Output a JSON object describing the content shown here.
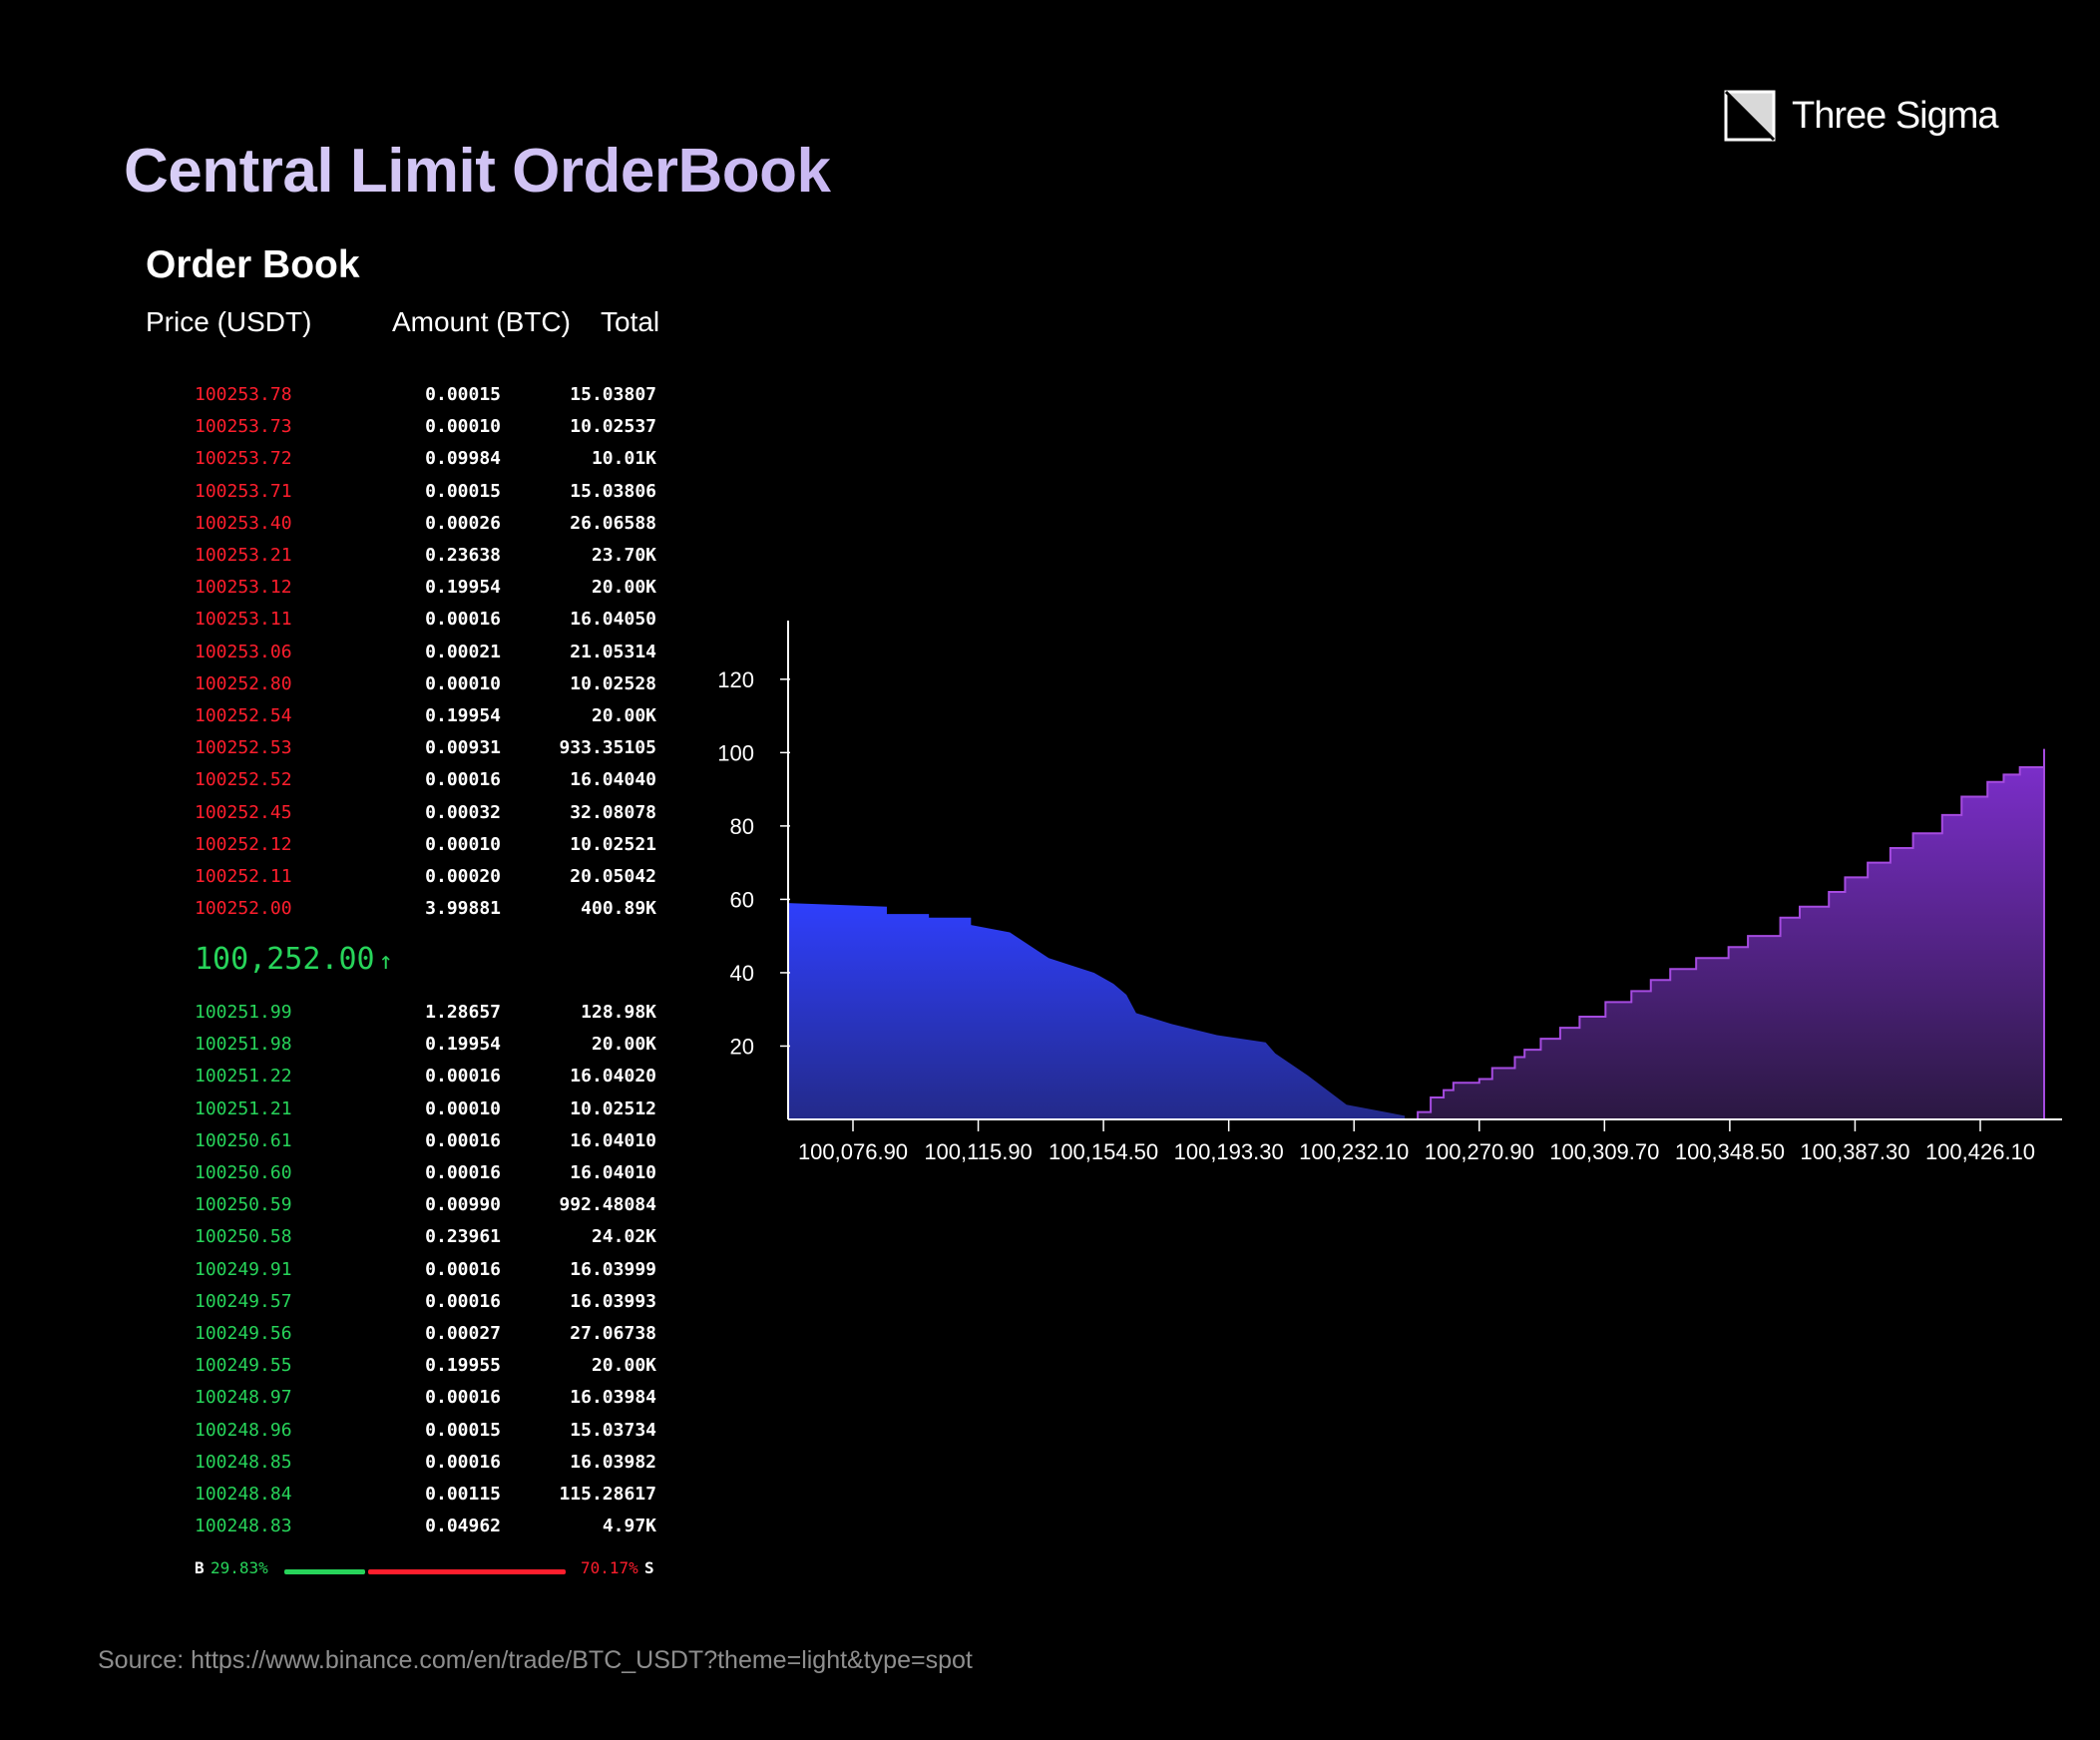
{
  "title": "Central Limit OrderBook",
  "brand": "Three Sigma",
  "order_book": {
    "heading": "Order Book",
    "columns": {
      "price": "Price (USDT)",
      "amount": "Amount (BTC)",
      "total": "Total"
    },
    "asks": [
      {
        "price": "100253.78",
        "amount": "0.00015",
        "total": "15.03807"
      },
      {
        "price": "100253.73",
        "amount": "0.00010",
        "total": "10.02537"
      },
      {
        "price": "100253.72",
        "amount": "0.09984",
        "total": "10.01K"
      },
      {
        "price": "100253.71",
        "amount": "0.00015",
        "total": "15.03806"
      },
      {
        "price": "100253.40",
        "amount": "0.00026",
        "total": "26.06588"
      },
      {
        "price": "100253.21",
        "amount": "0.23638",
        "total": "23.70K"
      },
      {
        "price": "100253.12",
        "amount": "0.19954",
        "total": "20.00K"
      },
      {
        "price": "100253.11",
        "amount": "0.00016",
        "total": "16.04050"
      },
      {
        "price": "100253.06",
        "amount": "0.00021",
        "total": "21.05314"
      },
      {
        "price": "100252.80",
        "amount": "0.00010",
        "total": "10.02528"
      },
      {
        "price": "100252.54",
        "amount": "0.19954",
        "total": "20.00K"
      },
      {
        "price": "100252.53",
        "amount": "0.00931",
        "total": "933.35105"
      },
      {
        "price": "100252.52",
        "amount": "0.00016",
        "total": "16.04040"
      },
      {
        "price": "100252.45",
        "amount": "0.00032",
        "total": "32.08078"
      },
      {
        "price": "100252.12",
        "amount": "0.00010",
        "total": "10.02521"
      },
      {
        "price": "100252.11",
        "amount": "0.00020",
        "total": "20.05042"
      },
      {
        "price": "100252.00",
        "amount": "3.99881",
        "total": "400.89K"
      }
    ],
    "last_price": "100,252.00",
    "last_price_arrow": "↑",
    "bids": [
      {
        "price": "100251.99",
        "amount": "1.28657",
        "total": "128.98K"
      },
      {
        "price": "100251.98",
        "amount": "0.19954",
        "total": "20.00K"
      },
      {
        "price": "100251.22",
        "amount": "0.00016",
        "total": "16.04020"
      },
      {
        "price": "100251.21",
        "amount": "0.00010",
        "total": "10.02512"
      },
      {
        "price": "100250.61",
        "amount": "0.00016",
        "total": "16.04010"
      },
      {
        "price": "100250.60",
        "amount": "0.00016",
        "total": "16.04010"
      },
      {
        "price": "100250.59",
        "amount": "0.00990",
        "total": "992.48084"
      },
      {
        "price": "100250.58",
        "amount": "0.23961",
        "total": "24.02K"
      },
      {
        "price": "100249.91",
        "amount": "0.00016",
        "total": "16.03999"
      },
      {
        "price": "100249.57",
        "amount": "0.00016",
        "total": "16.03993"
      },
      {
        "price": "100249.56",
        "amount": "0.00027",
        "total": "27.06738"
      },
      {
        "price": "100249.55",
        "amount": "0.19955",
        "total": "20.00K"
      },
      {
        "price": "100248.97",
        "amount": "0.00016",
        "total": "16.03984"
      },
      {
        "price": "100248.96",
        "amount": "0.00015",
        "total": "15.03734"
      },
      {
        "price": "100248.85",
        "amount": "0.00016",
        "total": "16.03982"
      },
      {
        "price": "100248.84",
        "amount": "0.00115",
        "total": "115.28617"
      },
      {
        "price": "100248.83",
        "amount": "0.04962",
        "total": "4.97K"
      }
    ],
    "buy_label": "B",
    "buy_pct": "29.83%",
    "sell_pct": "70.17%",
    "sell_label": "S",
    "buy_fraction": 0.2983
  },
  "source": "Source:  https://www.binance.com/en/trade/BTC_USDT?theme=light&type=spot",
  "colors": {
    "ask": "#ff1e2d",
    "bid": "#27d45a",
    "bid_depth": "#2d3cf7",
    "ask_depth": "#7a2bc4"
  },
  "chart_data": {
    "type": "area",
    "title": "",
    "xlabel": "",
    "ylabel": "",
    "x_ticks": [
      "100,076.90",
      "100,115.90",
      "100,154.50",
      "100,193.30",
      "100,232.10",
      "100,270.90",
      "100,309.70",
      "100,348.50",
      "100,387.30",
      "100,426.10"
    ],
    "y_ticks": [
      20,
      40,
      60,
      80,
      100,
      120
    ],
    "xlim": [
      100057.5,
      100445.5
    ],
    "ylim": [
      0,
      136
    ],
    "grid": false,
    "series": [
      {
        "side": "bid",
        "x": [
          100057.5,
          100088,
          100088,
          100101,
          100101,
          100114,
          100114,
          100126,
          100138,
          100145,
          100152,
          100158,
          100162,
          100165,
          100176,
          100190,
          100205,
          100208,
          100218,
          100230,
          100248
        ],
        "y": [
          59,
          58,
          56,
          56,
          55,
          55,
          53,
          51,
          44,
          42,
          40,
          37,
          34,
          29,
          26,
          23,
          21,
          18,
          12,
          4,
          1
        ]
      },
      {
        "side": "ask",
        "x": [
          100252,
          100256,
          100260,
          100263,
          100271,
          100275,
          100282,
          100285,
          100290,
          100296,
          100302,
          100310,
          100318,
          100324,
          100330,
          100338,
          100348,
          100354,
          100364,
          100370,
          100379,
          100384,
          100391,
          100398,
          100405,
          100414,
          100420,
          100428,
          100433,
          100438,
          100445.5
        ],
        "y": [
          2,
          6,
          8,
          10,
          11,
          14,
          17,
          19,
          22,
          25,
          28,
          32,
          35,
          38,
          41,
          44,
          47,
          50,
          55,
          58,
          62,
          66,
          70,
          74,
          78,
          83,
          88,
          92,
          94,
          96,
          101
        ]
      }
    ]
  }
}
